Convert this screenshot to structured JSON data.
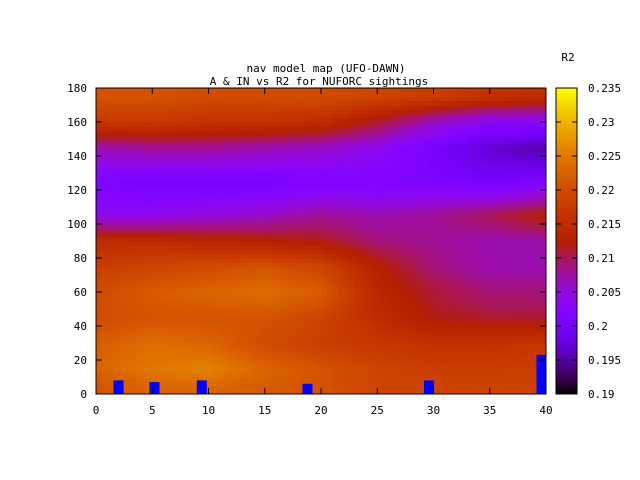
{
  "chart_data": {
    "type": "heatmap",
    "title_line1": "nav model map (UFO-DAWN)",
    "title_line2": "A & IN vs R2 for NUFORC sightings",
    "colorbar_label": "R2",
    "xlim": [
      0,
      40
    ],
    "ylim": [
      0,
      180
    ],
    "x_ticks": [
      "0",
      "5",
      "10",
      "15",
      "20",
      "25",
      "30",
      "35",
      "40"
    ],
    "y_ticks": [
      "0",
      "20",
      "40",
      "60",
      "80",
      "100",
      "120",
      "140",
      "160",
      "180"
    ],
    "colorbar_range": [
      0.19,
      0.235
    ],
    "colorbar_ticks": [
      "0.19",
      "0.195",
      "0.2",
      "0.205",
      "0.21",
      "0.215",
      "0.22",
      "0.225",
      "0.23",
      "0.235"
    ],
    "colormap": "gnuplot-default (black-purple-red-orange-yellow)",
    "grid": false,
    "legend": "right colorbar",
    "z_rows": [
      {
        "y": 175,
        "z": [
          0.221,
          0.221,
          0.22,
          0.22,
          0.22,
          0.219,
          0.218,
          0.216,
          0.215
        ]
      },
      {
        "y": 160,
        "z": [
          0.217,
          0.217,
          0.216,
          0.216,
          0.215,
          0.211,
          0.206,
          0.203,
          0.203
        ]
      },
      {
        "y": 145,
        "z": [
          0.207,
          0.208,
          0.208,
          0.207,
          0.206,
          0.204,
          0.2,
          0.197,
          0.195
        ]
      },
      {
        "y": 125,
        "z": [
          0.201,
          0.2,
          0.2,
          0.2,
          0.201,
          0.201,
          0.201,
          0.2,
          0.201
        ]
      },
      {
        "y": 105,
        "z": [
          0.204,
          0.204,
          0.205,
          0.206,
          0.208,
          0.207,
          0.208,
          0.21,
          0.213
        ]
      },
      {
        "y": 90,
        "z": [
          0.215,
          0.215,
          0.214,
          0.213,
          0.212,
          0.209,
          0.208,
          0.207,
          0.207
        ]
      },
      {
        "y": 75,
        "z": [
          0.218,
          0.219,
          0.22,
          0.221,
          0.219,
          0.213,
          0.209,
          0.207,
          0.207
        ]
      },
      {
        "y": 60,
        "z": [
          0.22,
          0.222,
          0.223,
          0.224,
          0.222,
          0.214,
          0.211,
          0.209,
          0.209
        ]
      },
      {
        "y": 45,
        "z": [
          0.22,
          0.221,
          0.221,
          0.221,
          0.219,
          0.215,
          0.212,
          0.211,
          0.211
        ]
      },
      {
        "y": 30,
        "z": [
          0.222,
          0.224,
          0.223,
          0.22,
          0.218,
          0.217,
          0.216,
          0.216,
          0.217
        ]
      },
      {
        "y": 15,
        "z": [
          0.223,
          0.225,
          0.226,
          0.223,
          0.221,
          0.219,
          0.218,
          0.218,
          0.218
        ]
      },
      {
        "y": 4,
        "z": [
          0.221,
          0.223,
          0.223,
          0.222,
          0.221,
          0.219,
          0.219,
          0.219,
          0.219
        ]
      }
    ],
    "z_row_x": [
      0,
      5,
      10,
      15,
      20,
      25,
      30,
      35,
      40
    ],
    "markers": [
      {
        "x": 2.0,
        "y": 0,
        "height": 8,
        "color": "#0000ff"
      },
      {
        "x": 5.2,
        "y": 0,
        "height": 7,
        "color": "#0000ff"
      },
      {
        "x": 9.4,
        "y": 0,
        "height": 8,
        "color": "#0000ff"
      },
      {
        "x": 18.8,
        "y": 0,
        "height": 6,
        "color": "#0000ff"
      },
      {
        "x": 29.6,
        "y": 0,
        "height": 8,
        "color": "#0000ff"
      },
      {
        "x": 39.6,
        "y": 0,
        "height": 23,
        "color": "#0000ff"
      }
    ]
  }
}
